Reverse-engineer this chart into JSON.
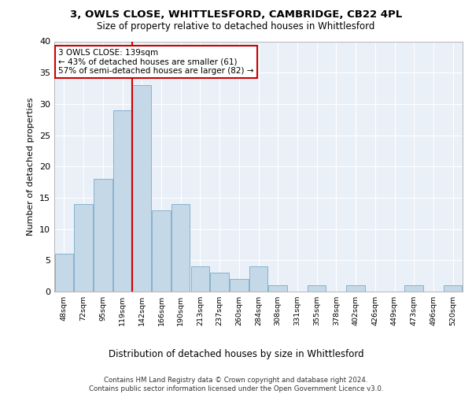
{
  "title1": "3, OWLS CLOSE, WHITTLESFORD, CAMBRIDGE, CB22 4PL",
  "title2": "Size of property relative to detached houses in Whittlesford",
  "xlabel": "Distribution of detached houses by size in Whittlesford",
  "ylabel": "Number of detached properties",
  "categories": [
    "48sqm",
    "72sqm",
    "95sqm",
    "119sqm",
    "142sqm",
    "166sqm",
    "190sqm",
    "213sqm",
    "237sqm",
    "260sqm",
    "284sqm",
    "308sqm",
    "331sqm",
    "355sqm",
    "378sqm",
    "402sqm",
    "426sqm",
    "449sqm",
    "473sqm",
    "496sqm",
    "520sqm"
  ],
  "values": [
    6,
    14,
    18,
    29,
    33,
    13,
    14,
    4,
    3,
    2,
    4,
    1,
    0,
    1,
    0,
    1,
    0,
    0,
    1,
    0,
    1
  ],
  "bar_color": "#c5d8e8",
  "bar_edge_color": "#7aaac8",
  "property_line_index": 4,
  "property_line_color": "#cc0000",
  "annotation_text": "3 OWLS CLOSE: 139sqm\n← 43% of detached houses are smaller (61)\n57% of semi-detached houses are larger (82) →",
  "annotation_box_color": "#cc0000",
  "ylim": [
    0,
    40
  ],
  "yticks": [
    0,
    5,
    10,
    15,
    20,
    25,
    30,
    35,
    40
  ],
  "footer": "Contains HM Land Registry data © Crown copyright and database right 2024.\nContains public sector information licensed under the Open Government Licence v3.0.",
  "plot_bg_color": "#eaf0f8"
}
